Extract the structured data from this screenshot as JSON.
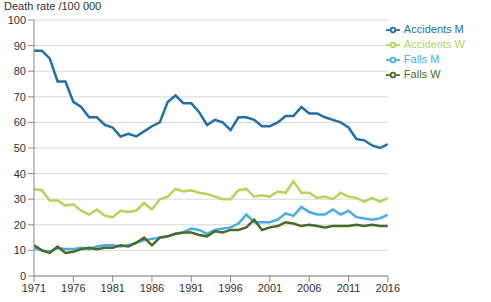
{
  "chart_data": {
    "type": "line",
    "y_label": "Death rate /100 000",
    "x": [
      1971,
      1972,
      1973,
      1974,
      1975,
      1976,
      1977,
      1978,
      1979,
      1980,
      1981,
      1982,
      1983,
      1984,
      1985,
      1986,
      1987,
      1988,
      1989,
      1990,
      1991,
      1992,
      1993,
      1994,
      1995,
      1996,
      1997,
      1998,
      1999,
      2000,
      2001,
      2002,
      2003,
      2004,
      2005,
      2006,
      2007,
      2008,
      2009,
      2010,
      2011,
      2012,
      2013,
      2014,
      2015,
      2016
    ],
    "series": [
      {
        "name": "Accidents M",
        "color": "#1f6fab",
        "values": [
          88,
          88,
          85,
          76,
          76,
          68,
          66,
          62,
          62,
          59,
          58,
          54.5,
          55.5,
          54.5,
          56.5,
          58.5,
          60,
          68,
          70.5,
          67.5,
          67.5,
          64,
          59,
          61,
          60,
          57,
          62,
          62,
          61,
          58.5,
          58.5,
          60,
          62.5,
          62.5,
          66,
          63.5,
          63.5,
          62,
          61,
          60,
          58,
          53.5,
          53,
          51,
          50,
          51.5
        ]
      },
      {
        "name": "Accidents W",
        "color": "#b5d55a",
        "values": [
          34,
          33.5,
          29.5,
          29.5,
          27.5,
          28,
          25.5,
          24,
          26,
          23.5,
          23,
          25.5,
          25,
          25.5,
          28.5,
          26,
          30,
          31,
          34,
          33,
          33.5,
          32.5,
          32,
          31,
          30,
          30,
          33.5,
          34,
          31,
          31.5,
          31,
          33,
          32.5,
          37,
          32.5,
          32.5,
          30.5,
          31,
          30,
          32.5,
          31,
          30.5,
          29,
          30.5,
          29,
          30.5
        ]
      },
      {
        "name": "Falls M",
        "color": "#43aee8",
        "values": [
          11,
          10,
          9.5,
          11,
          10.5,
          10.5,
          11,
          10.5,
          11.5,
          12,
          12,
          11.5,
          12,
          13,
          14,
          14.5,
          15,
          15.5,
          16.5,
          17,
          18.5,
          18,
          16.5,
          18,
          18.5,
          19,
          20.5,
          24,
          21,
          21,
          21,
          22,
          24.5,
          23.5,
          27,
          25,
          24,
          24,
          26,
          24,
          25.5,
          23,
          22.5,
          22,
          22.5,
          24
        ]
      },
      {
        "name": "Falls W",
        "color": "#4a6b25",
        "values": [
          12,
          10,
          9,
          11.5,
          9,
          9.5,
          10.5,
          11,
          10.5,
          11,
          11,
          12,
          11.5,
          13,
          15,
          12,
          15,
          15.5,
          16.5,
          17,
          17,
          16,
          15.5,
          17.5,
          17,
          18,
          18,
          19,
          22,
          18,
          19,
          19.5,
          21,
          20.5,
          19.5,
          20,
          19.5,
          19,
          19.5,
          19.5,
          19.5,
          20,
          19.5,
          20,
          19.5,
          19.5
        ]
      }
    ],
    "xlim": [
      1971,
      2016
    ],
    "xticks": [
      1971,
      1976,
      1981,
      1986,
      1991,
      1996,
      2001,
      2006,
      2011,
      2016
    ],
    "ylim": [
      0,
      100
    ],
    "yticks": [
      0,
      10,
      20,
      30,
      40,
      50,
      60,
      70,
      80,
      90,
      100
    ],
    "grid": true,
    "legend": "upper right"
  }
}
